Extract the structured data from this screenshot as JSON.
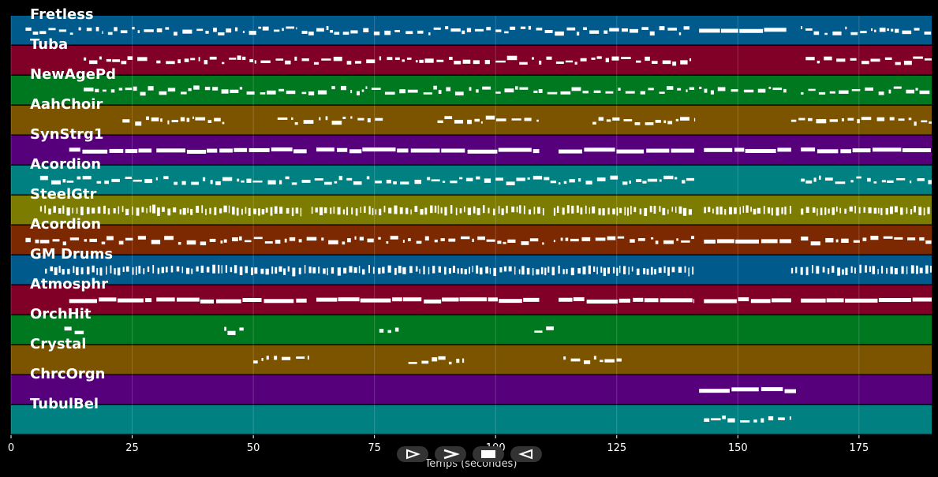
{
  "tracks": [
    {
      "name": "Fretless",
      "color": "#005a8c"
    },
    {
      "name": "Tuba",
      "color": "#800028"
    },
    {
      "name": "NewAgePd",
      "color": "#007820"
    },
    {
      "name": "AahChoir",
      "color": "#7c5400"
    },
    {
      "name": "SynStrg1",
      "color": "#56007c"
    },
    {
      "name": "Acordion",
      "color": "#008080"
    },
    {
      "name": "SteelGtr",
      "color": "#7c7c00"
    },
    {
      "name": "Acordion",
      "color": "#7c2800"
    },
    {
      "name": "GM Drums",
      "color": "#005a8c"
    },
    {
      "name": "Atmosphr",
      "color": "#800028"
    },
    {
      "name": "OrchHit",
      "color": "#007820"
    },
    {
      "name": "Crystal",
      "color": "#7c5400"
    },
    {
      "name": "ChrcOrgn",
      "color": "#56007c"
    },
    {
      "name": "TubulBel",
      "color": "#008080"
    }
  ],
  "x_axis": {
    "title": "Temps (secondes)",
    "min": 0,
    "max": 190,
    "ticks": [
      0,
      25,
      50,
      75,
      100,
      125,
      150,
      175
    ]
  },
  "controls": [
    {
      "id": "play",
      "icon": "play-outline-icon"
    },
    {
      "id": "forward",
      "icon": "chevron-right-icon"
    },
    {
      "id": "stop",
      "icon": "stop-icon"
    },
    {
      "id": "rewind",
      "icon": "rewind-outline-icon"
    }
  ],
  "note_segments": [
    [
      [
        3,
        19,
        "s"
      ],
      [
        20,
        59,
        "s"
      ],
      [
        60,
        99,
        "s"
      ],
      [
        100,
        140,
        "s"
      ],
      [
        142,
        160,
        "w"
      ],
      [
        163,
        190,
        "s"
      ]
    ],
    [
      [
        15,
        29,
        "s"
      ],
      [
        30,
        59,
        "s"
      ],
      [
        60,
        99,
        "s"
      ],
      [
        100,
        141,
        "s"
      ],
      [
        164,
        190,
        "s"
      ]
    ],
    [
      [
        15,
        59,
        "s"
      ],
      [
        60,
        99,
        "s"
      ],
      [
        100,
        141,
        "s"
      ],
      [
        142,
        160,
        "s"
      ],
      [
        163,
        190,
        "s"
      ]
    ],
    [
      [
        23,
        44,
        "s"
      ],
      [
        55,
        77,
        "s"
      ],
      [
        88,
        109,
        "s"
      ],
      [
        120,
        141,
        "s"
      ],
      [
        161,
        190,
        "s"
      ]
    ],
    [
      [
        12,
        29,
        "w"
      ],
      [
        30,
        61,
        "w"
      ],
      [
        63,
        109,
        "w"
      ],
      [
        113,
        141,
        "w"
      ],
      [
        143,
        161,
        "w"
      ],
      [
        163,
        190,
        "w"
      ]
    ],
    [
      [
        6,
        59,
        "s"
      ],
      [
        60,
        99,
        "s"
      ],
      [
        100,
        141,
        "s"
      ],
      [
        163,
        190,
        "s"
      ]
    ],
    [
      [
        6,
        60,
        "d"
      ],
      [
        62,
        110,
        "d"
      ],
      [
        112,
        141,
        "d"
      ],
      [
        143,
        161,
        "d"
      ],
      [
        163,
        190,
        "d"
      ]
    ],
    [
      [
        3,
        60,
        "s"
      ],
      [
        61,
        110,
        "s"
      ],
      [
        112,
        141,
        "s"
      ],
      [
        143,
        161,
        "w"
      ],
      [
        163,
        190,
        "s"
      ]
    ],
    [
      [
        7,
        141,
        "d"
      ],
      [
        161,
        190,
        "d"
      ]
    ],
    [
      [
        12,
        29,
        "w"
      ],
      [
        30,
        61,
        "w"
      ],
      [
        63,
        109,
        "w"
      ],
      [
        113,
        141,
        "w"
      ],
      [
        143,
        161,
        "w"
      ],
      [
        163,
        190,
        "w"
      ]
    ],
    [
      [
        11,
        15,
        "s"
      ],
      [
        44,
        48,
        "s"
      ],
      [
        76,
        80,
        "s"
      ],
      [
        108,
        112,
        "s"
      ]
    ],
    [
      [
        50,
        62,
        "s"
      ],
      [
        82,
        94,
        "s"
      ],
      [
        114,
        126,
        "s"
      ]
    ],
    [
      [
        142,
        162,
        "w"
      ]
    ],
    [
      [
        143,
        161,
        "s"
      ]
    ]
  ]
}
